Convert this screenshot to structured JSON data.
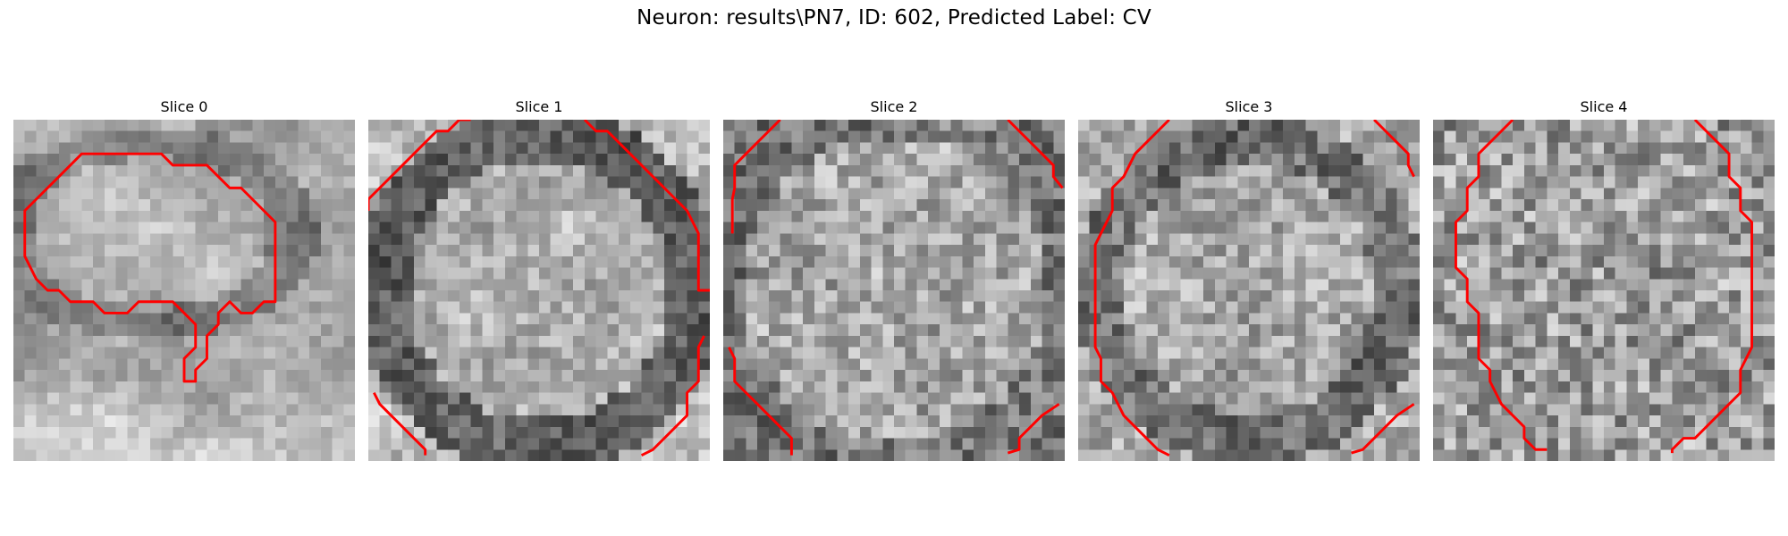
{
  "figure": {
    "title": "Neuron: results\\PN7, ID: 602, Predicted Label: CV"
  },
  "panels": [
    {
      "label": "Slice 0",
      "tiles": "slice-0 grayscale patch with red contour overlay"
    },
    {
      "label": "Slice 1",
      "tiles": "slice-1 grayscale patch with red contour overlay"
    },
    {
      "label": "Slice 2",
      "tiles": "slice-2 grayscale patch with red contour overlay"
    },
    {
      "label": "Slice 3",
      "tiles": "slice-3 grayscale patch with red contour overlay"
    },
    {
      "label": "Slice 4",
      "tiles": "slice-4 grayscale patch with red contour overlay"
    }
  ],
  "colors": {
    "contour": "#ff0000",
    "background": "#ffffff"
  }
}
